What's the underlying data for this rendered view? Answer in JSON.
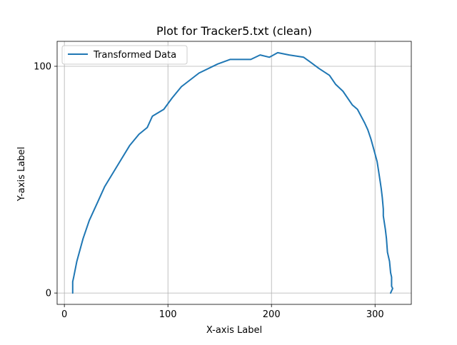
{
  "chart_data": {
    "type": "line",
    "title": "Plot for Tracker5.txt (clean)",
    "xlabel": "X-axis Label",
    "ylabel": "Y-axis Label",
    "xlim": [
      -7,
      335
    ],
    "ylim": [
      -5,
      111
    ],
    "xticks": [
      0,
      100,
      200,
      300
    ],
    "yticks": [
      0,
      100
    ],
    "grid": true,
    "legend_position": "top-left",
    "colors": {
      "line": "#1f77b4",
      "grid": "#b0b0b0",
      "axes": "#000000"
    },
    "series": [
      {
        "name": "Transformed Data",
        "x": [
          8,
          8,
          9,
          12,
          18,
          24,
          32,
          39,
          47,
          55,
          63,
          72,
          80,
          85,
          96,
          104,
          113,
          130,
          148,
          160,
          170,
          180,
          189,
          198,
          206,
          217,
          231,
          237,
          246,
          256,
          262,
          269,
          278,
          283,
          290,
          293,
          296,
          299,
          302,
          303,
          305,
          306,
          307,
          308,
          308,
          310,
          311,
          312,
          314,
          315,
          316,
          316,
          316,
          317,
          315
        ],
        "y": [
          0,
          5,
          7,
          14,
          24,
          32,
          40,
          47,
          53,
          59,
          65,
          70,
          73,
          78,
          81,
          86,
          91,
          97,
          101,
          103,
          103,
          103,
          105,
          104,
          106,
          105,
          104,
          102,
          99,
          96,
          92,
          89,
          83,
          81,
          75,
          72,
          68,
          63,
          58,
          55,
          49,
          46,
          42,
          37,
          34,
          28,
          24,
          18,
          14,
          9,
          7,
          5,
          3,
          2,
          0
        ]
      }
    ]
  }
}
